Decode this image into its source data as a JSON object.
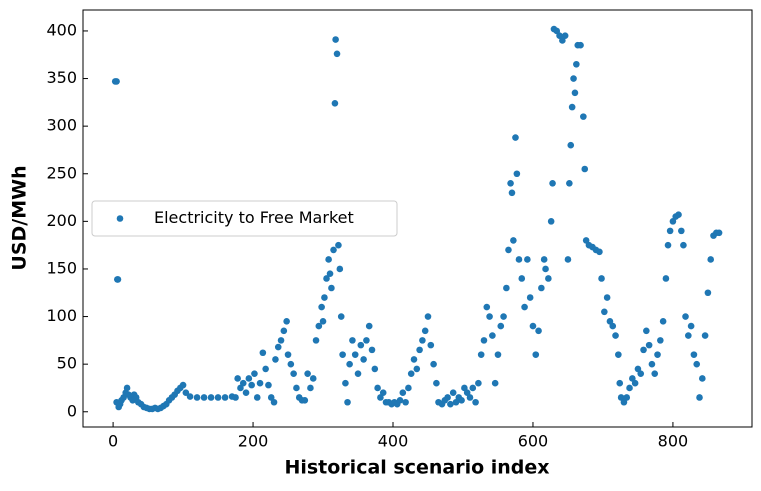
{
  "chart_data": {
    "type": "scatter",
    "xlabel": "Historical scenario index",
    "ylabel": "USD/MWh",
    "x": [
      3,
      5,
      6,
      7,
      5,
      8,
      10,
      12,
      15,
      18,
      20,
      22,
      25,
      28,
      30,
      33,
      36,
      40,
      44,
      48,
      52,
      56,
      60,
      64,
      68,
      72,
      76,
      80,
      84,
      88,
      92,
      96,
      100,
      104,
      110,
      120,
      130,
      140,
      150,
      160,
      170,
      175,
      178,
      182,
      186,
      190,
      194,
      198,
      202,
      206,
      210,
      214,
      218,
      222,
      226,
      230,
      232,
      236,
      240,
      244,
      248,
      250,
      254,
      258,
      262,
      266,
      270,
      274,
      278,
      282,
      286,
      290,
      294,
      298,
      300,
      302,
      305,
      308,
      310,
      312,
      315,
      317,
      318,
      320,
      322,
      324,
      326,
      328,
      332,
      335,
      338,
      342,
      346,
      350,
      354,
      358,
      362,
      366,
      370,
      374,
      378,
      382,
      386,
      390,
      394,
      398,
      402,
      406,
      410,
      414,
      418,
      422,
      426,
      430,
      434,
      438,
      442,
      446,
      450,
      454,
      458,
      462,
      465,
      470,
      474,
      478,
      482,
      486,
      490,
      494,
      498,
      502,
      506,
      510,
      514,
      518,
      522,
      526,
      530,
      534,
      538,
      542,
      546,
      550,
      554,
      558,
      562,
      565,
      568,
      570,
      572,
      575,
      577,
      580,
      584,
      588,
      592,
      596,
      600,
      604,
      608,
      612,
      616,
      618,
      622,
      626,
      628,
      630,
      634,
      638,
      642,
      646,
      650,
      652,
      654,
      656,
      658,
      660,
      662,
      664,
      668,
      672,
      674,
      676,
      680,
      685,
      690,
      695,
      698,
      702,
      706,
      710,
      714,
      718,
      722,
      724,
      726,
      730,
      734,
      738,
      742,
      746,
      750,
      754,
      758,
      762,
      766,
      770,
      774,
      778,
      782,
      786,
      790,
      793,
      796,
      800,
      804,
      808,
      812,
      815,
      818,
      822,
      826,
      830,
      834,
      838,
      842,
      846,
      850,
      854,
      858,
      862,
      866
    ],
    "series": [
      {
        "name": "Electricity to Free Market",
        "color": "#1f77b4",
        "values": [
          347,
          347,
          139,
          139,
          10,
          5,
          8,
          12,
          15,
          20,
          25,
          18,
          15,
          12,
          18,
          15,
          10,
          8,
          5,
          4,
          3,
          3,
          4,
          3,
          4,
          6,
          8,
          12,
          15,
          18,
          22,
          25,
          28,
          20,
          16,
          15,
          15,
          15,
          15,
          15,
          16,
          15,
          35,
          25,
          30,
          20,
          35,
          28,
          40,
          15,
          30,
          62,
          45,
          28,
          15,
          10,
          55,
          68,
          75,
          85,
          95,
          60,
          50,
          40,
          25,
          15,
          12,
          12,
          40,
          25,
          35,
          75,
          90,
          110,
          95,
          120,
          140,
          160,
          145,
          130,
          170,
          324,
          391,
          376,
          175,
          150,
          100,
          60,
          30,
          10,
          50,
          75,
          60,
          40,
          70,
          55,
          75,
          90,
          65,
          45,
          25,
          15,
          20,
          10,
          10,
          8,
          10,
          8,
          12,
          20,
          10,
          25,
          40,
          55,
          45,
          65,
          75,
          85,
          100,
          70,
          50,
          30,
          10,
          8,
          12,
          15,
          8,
          20,
          10,
          15,
          12,
          25,
          20,
          15,
          25,
          10,
          30,
          60,
          75,
          110,
          100,
          80,
          30,
          60,
          90,
          100,
          130,
          170,
          240,
          230,
          180,
          288,
          250,
          160,
          140,
          110,
          160,
          120,
          90,
          60,
          85,
          130,
          160,
          150,
          140,
          200,
          240,
          402,
          400,
          395,
          390,
          395,
          160,
          240,
          280,
          320,
          350,
          335,
          365,
          385,
          385,
          310,
          255,
          180,
          175,
          173,
          170,
          168,
          140,
          105,
          120,
          95,
          90,
          80,
          60,
          30,
          15,
          10,
          15,
          25,
          35,
          30,
          45,
          40,
          65,
          85,
          70,
          50,
          40,
          60,
          75,
          95,
          140,
          175,
          190,
          200,
          205,
          207,
          190,
          175,
          100,
          80,
          90,
          60,
          50,
          15,
          35,
          80,
          125,
          160,
          185,
          188,
          188
        ]
      }
    ],
    "xlim": [
      -43,
      913
    ],
    "xticks": [
      0,
      200,
      400,
      600,
      800
    ],
    "ylim": [
      -16,
      422
    ],
    "yticks": [
      0,
      50,
      100,
      150,
      200,
      250,
      300,
      350,
      400
    ],
    "legend": "center left",
    "grid": false
  }
}
